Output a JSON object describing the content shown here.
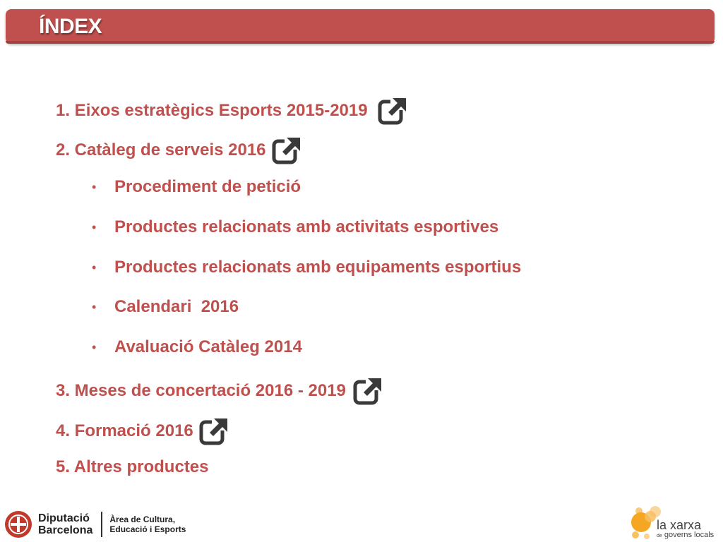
{
  "header": {
    "title": "ÍNDEX"
  },
  "colors": {
    "accent": "#c0504d",
    "icon": "#3a3a3a"
  },
  "items": [
    {
      "label": "1. Eixos estratègics Esports 2015-2019",
      "has_link": true
    },
    {
      "label": "2. Catàleg de serveis 2016",
      "has_link": true
    },
    {
      "label": "Procediment de petició",
      "bullet": "•"
    },
    {
      "label": "Productes relacionats amb activitats esportives",
      "bullet": "•"
    },
    {
      "label": "Productes relacionats amb equipaments esportius",
      "bullet": "•"
    },
    {
      "label": "Calendari  2016",
      "bullet": "•"
    },
    {
      "label": "Avaluació Catàleg 2014",
      "bullet": "•"
    },
    {
      "label": "3. Meses de concertació 2016 - 2019",
      "has_link": true
    },
    {
      "label": "4. Formació 2016",
      "has_link": true
    },
    {
      "label": "5. Altres productes"
    }
  ],
  "footer": {
    "org_line1": "Diputació",
    "org_line2": "Barcelona",
    "area_line1": "Àrea de Cultura,",
    "area_line2": "Educació i Esports",
    "network_main": "la xarxa",
    "network_prefix": "de",
    "network_sub": "governs locals"
  }
}
